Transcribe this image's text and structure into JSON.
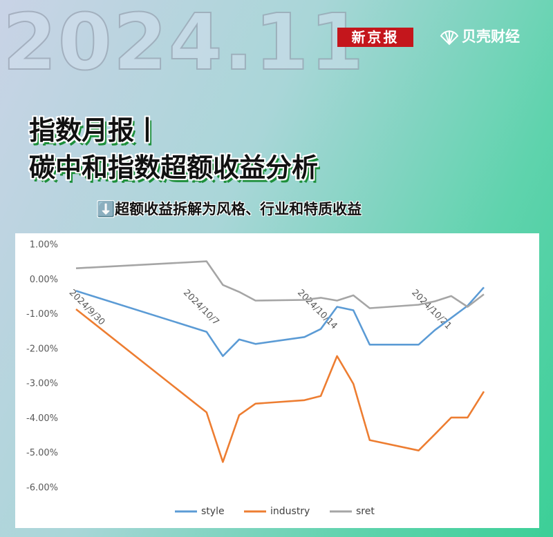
{
  "header": {
    "year": "2024.11",
    "brand_1": "新京报",
    "brand_2": "贝壳财经",
    "title_line_1": "指数月报丨",
    "title_line_2": "碳中和指数超额收益分析",
    "subtitle": "⬇️超额收益拆解为风格、行业和特质收益"
  },
  "chart_data": {
    "type": "line",
    "x": [
      "2024/9/30",
      "2024/10/8",
      "2024/10/9",
      "2024/10/10",
      "2024/10/11",
      "2024/10/14",
      "2024/10/15",
      "2024/10/16",
      "2024/10/17",
      "2024/10/18",
      "2024/10/21",
      "2024/10/22",
      "2024/10/23",
      "2024/10/24",
      "2024/10/25"
    ],
    "series": [
      {
        "name": "style",
        "color": "#5b9bd5",
        "values": [
          -0.32,
          -1.5,
          -2.2,
          -1.72,
          -1.85,
          -1.65,
          -1.42,
          -0.78,
          -0.88,
          -1.87,
          -1.87,
          -1.45,
          -1.1,
          -0.75,
          -0.22
        ]
      },
      {
        "name": "industry",
        "color": "#ed7d31",
        "values": [
          -0.85,
          -3.82,
          -5.25,
          -3.9,
          -3.57,
          -3.47,
          -3.35,
          -2.2,
          -3.0,
          -4.62,
          -4.92,
          -4.45,
          -3.97,
          -3.97,
          -3.22
        ]
      },
      {
        "name": "sret",
        "color": "#a5a5a5",
        "values": [
          0.33,
          0.53,
          -0.15,
          -0.35,
          -0.6,
          -0.58,
          -0.52,
          -0.6,
          -0.45,
          -0.82,
          -0.72,
          -0.62,
          -0.47,
          -0.78,
          -0.42
        ]
      }
    ],
    "xlim": [
      "2024/9/30",
      "2024/10/26"
    ],
    "xticks": [
      "2024/9/30",
      "2024/10/7",
      "2024/10/14",
      "2024/10/21"
    ],
    "ylim": [
      -6,
      1
    ],
    "yticks": [
      {
        "value": 1,
        "label": "1.00%"
      },
      {
        "value": 0,
        "label": "0.00%"
      },
      {
        "value": -1,
        "label": "-1.00%"
      },
      {
        "value": -2,
        "label": "-2.00%"
      },
      {
        "value": -3,
        "label": "-3.00%"
      },
      {
        "value": -4,
        "label": "-4.00%"
      },
      {
        "value": -5,
        "label": "-5.00%"
      },
      {
        "value": -6,
        "label": "-6.00%"
      }
    ],
    "grid": false,
    "legend": "bottom"
  }
}
